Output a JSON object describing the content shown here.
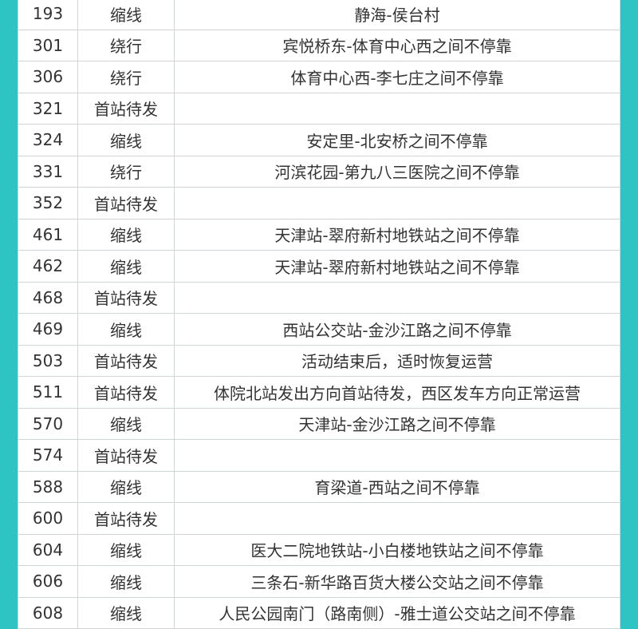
{
  "table": {
    "rows": [
      [
        "193",
        "缩线",
        "静海-侯台村"
      ],
      [
        "301",
        "绕行",
        "宾悦桥东-体育中心西之间不停靠"
      ],
      [
        "306",
        "绕行",
        "体育中心西-李七庄之间不停靠"
      ],
      [
        "321",
        "首站待发"
      ],
      [
        "324",
        "缩线",
        "安定里-北安桥之间不停靠"
      ],
      [
        "331",
        "绕行",
        "河滨花园-第九八三医院之间不停靠"
      ],
      [
        "352",
        "首站待发"
      ],
      [
        "461",
        "缩线",
        "天津站-翠府新村地铁站之间不停靠"
      ],
      [
        "462",
        "缩线",
        "天津站-翠府新村地铁站之间不停靠"
      ],
      [
        "468",
        "首站待发"
      ],
      [
        "469",
        "缩线",
        "西站公交站-金沙江路之间不停靠"
      ],
      [
        "503",
        "首站待发",
        "活动结束后，适时恢复运营"
      ],
      [
        "511",
        "首站待发",
        "体院北站发出方向首站待发，西区发车方向正常运营"
      ],
      [
        "570",
        "缩线",
        "天津站-金沙江路之间不停靠"
      ],
      [
        "574",
        "首站待发"
      ],
      [
        "588",
        "缩线",
        "育梁道-西站之间不停靠"
      ],
      [
        "600",
        "首站待发"
      ],
      [
        "604",
        "缩线",
        "医大二院地铁站-小白楼地铁站之间不停靠"
      ],
      [
        "606",
        "缩线",
        "三条石-新华路百货大楼公交站之间不停靠"
      ],
      [
        "608",
        "缩线",
        "人民公园南门（路南侧）-雅士道公交站之间不停靠"
      ]
    ]
  }
}
